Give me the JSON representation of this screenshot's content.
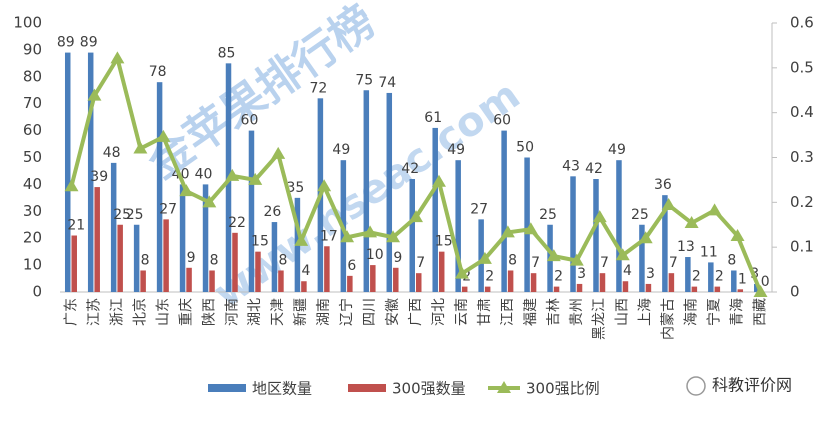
{
  "chart_data": {
    "type": "bar_line",
    "categories": [
      "广东",
      "江苏",
      "浙江",
      "北京",
      "山东",
      "重庆",
      "陕西",
      "河南",
      "湖北",
      "天津",
      "新疆",
      "湖南",
      "辽宁",
      "四川",
      "安徽",
      "广西",
      "河北",
      "云南",
      "甘肃",
      "江西",
      "福建",
      "吉林",
      "贵州",
      "黑龙江",
      "山西",
      "上海",
      "内蒙古",
      "海南",
      "宁夏",
      "青海",
      "西藏"
    ],
    "series": [
      {
        "name": "地区数量",
        "color": "#4a7ebb",
        "type": "bar",
        "values": [
          89,
          89,
          48,
          25,
          78,
          40,
          40,
          85,
          60,
          26,
          35,
          72,
          49,
          75,
          74,
          42,
          61,
          49,
          27,
          60,
          50,
          25,
          43,
          42,
          49,
          25,
          36,
          13,
          11,
          8,
          3
        ]
      },
      {
        "name": "300强数量",
        "color": "#c0504d",
        "type": "bar",
        "values": [
          21,
          39,
          25,
          8,
          27,
          9,
          8,
          22,
          15,
          8,
          4,
          17,
          6,
          10,
          9,
          7,
          15,
          2,
          2,
          8,
          7,
          2,
          3,
          7,
          4,
          3,
          7,
          2,
          2,
          1,
          0
        ]
      },
      {
        "name": "300强比例",
        "color": "#9bbb59",
        "type": "line",
        "axis": "y2",
        "values": [
          0.236,
          0.438,
          0.521,
          0.32,
          0.346,
          0.225,
          0.2,
          0.259,
          0.25,
          0.308,
          0.114,
          0.236,
          0.122,
          0.133,
          0.122,
          0.167,
          0.246,
          0.041,
          0.074,
          0.133,
          0.14,
          0.08,
          0.07,
          0.167,
          0.082,
          0.12,
          0.194,
          0.154,
          0.182,
          0.125,
          0
        ]
      }
    ],
    "ylim": [
      0,
      100
    ],
    "yticks": [
      0,
      10,
      20,
      30,
      40,
      50,
      60,
      70,
      80,
      90,
      100
    ],
    "y2lim": [
      0,
      0.6
    ],
    "y2ticks": [
      {
        "value": 0,
        "label": "0"
      },
      {
        "value": 0.1,
        "label": "0.1"
      },
      {
        "value": 0.2,
        "label": "0.2"
      },
      {
        "value": 0.3,
        "label": "0.3"
      },
      {
        "value": 0.4,
        "label": "0.4"
      },
      {
        "value": 0.5,
        "label": "0.5"
      },
      {
        "value": 0.6,
        "label": "0.6"
      }
    ],
    "watermark": [
      "金苹果排行榜",
      "www.nseac.com"
    ],
    "source": "科教评价网",
    "legend": "bottom"
  }
}
